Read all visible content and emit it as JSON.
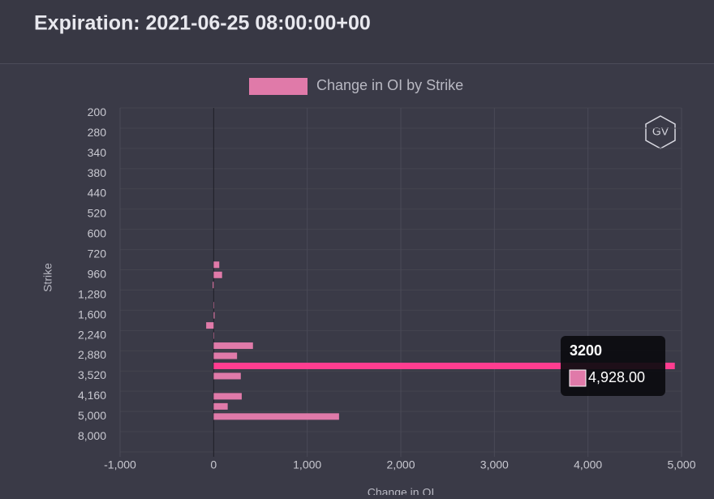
{
  "chart_data": {
    "type": "hbar",
    "title": "Expiration: 2021-06-25 08:00:00+00",
    "series_name": "Change in OI by Strike",
    "x_label": "Change in OI",
    "y_label": "Strike",
    "color": "#e07aa9",
    "highlight_color": "#ff3d90",
    "categories": [
      "200",
      null,
      "280",
      null,
      "340",
      null,
      "380",
      null,
      "440",
      null,
      "520",
      null,
      "600",
      null,
      "720",
      null,
      "960",
      null,
      "1,280",
      null,
      "1,600",
      null,
      "2,240",
      null,
      "2,880",
      "3200",
      "3,520",
      null,
      "4,160",
      null,
      "5,000",
      null,
      "8,000",
      null
    ],
    "values": [
      0,
      0,
      0,
      0,
      0,
      0,
      0,
      0,
      0,
      0,
      0,
      0,
      0,
      0,
      0,
      60,
      90,
      -10,
      0,
      5,
      10,
      -80,
      5,
      420,
      250,
      4928,
      290,
      0,
      300,
      150,
      1340,
      0,
      0,
      0
    ],
    "tooltip_label": "4,928.00",
    "xlim": [
      -1000,
      5000
    ],
    "xticks": [
      {
        "value": -1000,
        "label": "-1,000"
      },
      0,
      {
        "value": 1000,
        "label": "1,000"
      },
      {
        "value": 2000,
        "label": "2,000"
      },
      {
        "value": 3000,
        "label": "3,000"
      },
      {
        "value": 4000,
        "label": "4,000"
      },
      {
        "value": 5000,
        "label": "5,000"
      }
    ],
    "grid": true
  }
}
